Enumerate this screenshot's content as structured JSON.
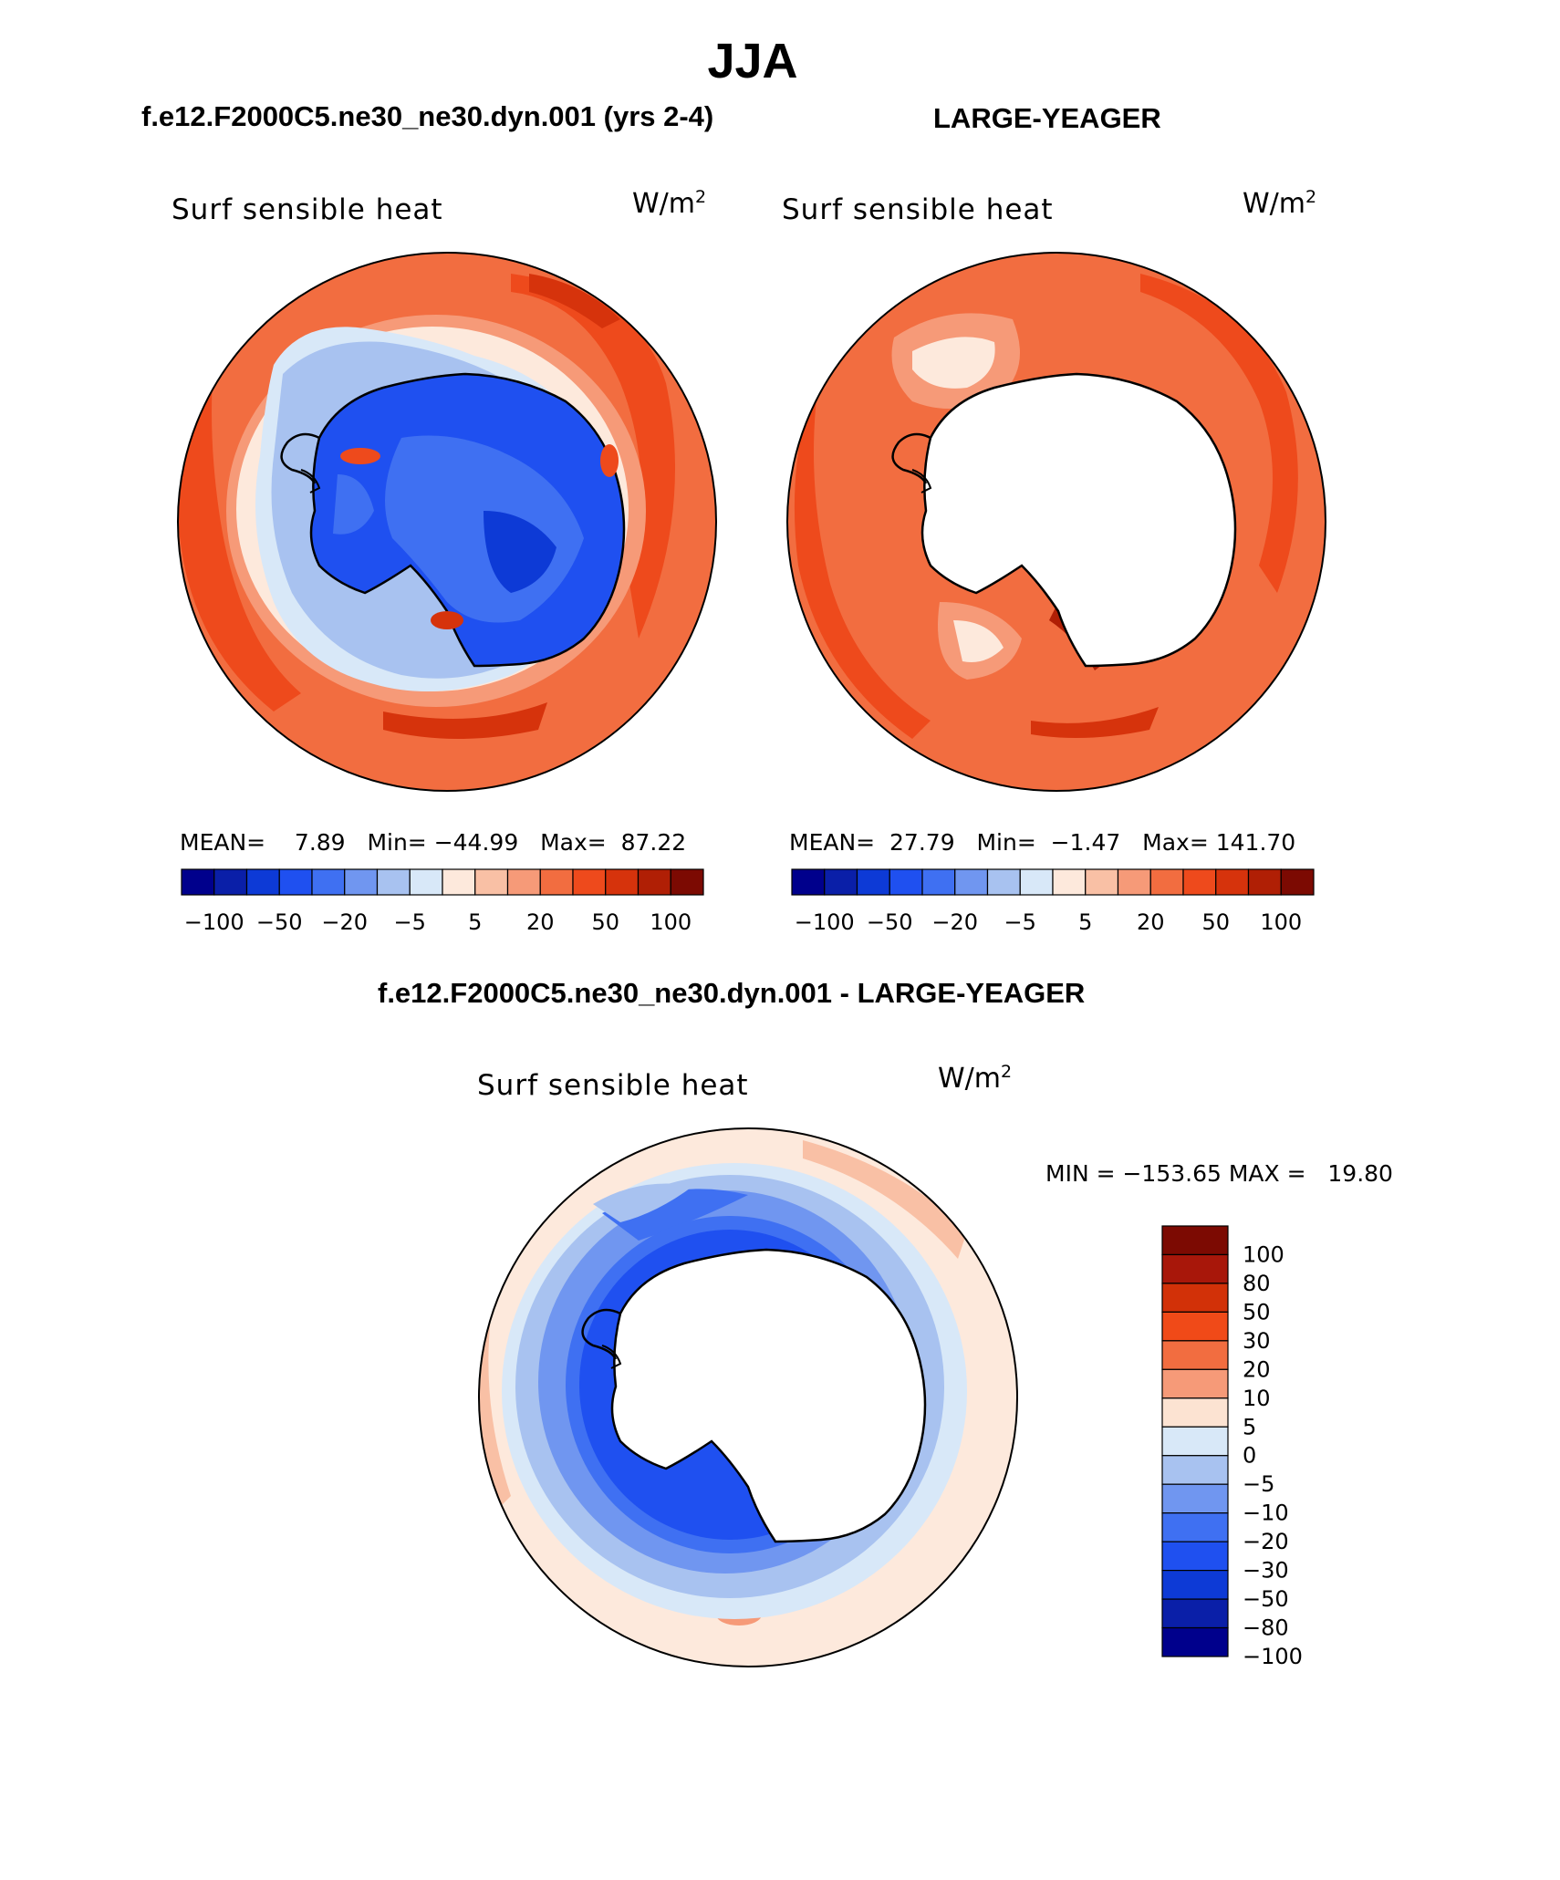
{
  "title": "JJA",
  "panels": [
    {
      "id": "model",
      "subtitle": "f.e12.F2000C5.ne30_ne30.dyn.001 (yrs 2-4)",
      "variable": "Surf sensible heat",
      "units_base": "W/m",
      "units_exp": "2",
      "stats": {
        "mean_label": "MEAN=",
        "mean": "7.89",
        "min_label": "Min=",
        "min": "−44.99",
        "max_label": "Max=",
        "max": "87.22"
      }
    },
    {
      "id": "obs",
      "subtitle": "LARGE-YEAGER",
      "variable": "Surf sensible heat",
      "units_base": "W/m",
      "units_exp": "2",
      "stats": {
        "mean_label": "MEAN=",
        "mean": "27.79",
        "min_label": "Min=",
        "min": "−1.47",
        "max_label": "Max=",
        "max": "141.70"
      }
    }
  ],
  "difference": {
    "subtitle": "f.e12.F2000C5.ne30_ne30.dyn.001 - LARGE-YEAGER",
    "variable": "Surf sensible heat",
    "units_base": "W/m",
    "units_exp": "2",
    "minmax": "MIN = −153.65 MAX =   19.80"
  },
  "colorbar_horizontal": {
    "colors": [
      "#00008c",
      "#0a1fa8",
      "#0d3ad6",
      "#1f50f0",
      "#3f70f2",
      "#7096f0",
      "#a8c2f0",
      "#d8e8f8",
      "#fde9dc",
      "#f9c0a5",
      "#f69a78",
      "#f26d40",
      "#ee4a1c",
      "#d6330c",
      "#b01f05",
      "#7c0a02"
    ],
    "labels": [
      "−100",
      "−50",
      "−20",
      "−5",
      "5",
      "20",
      "50",
      "100"
    ]
  },
  "colorbar_vertical": {
    "colors": [
      "#7c0a02",
      "#a8170a",
      "#d23108",
      "#f04a18",
      "#f26d40",
      "#f69a78",
      "#fce3d2",
      "#d8e8f8",
      "#a8c2f0",
      "#7096f0",
      "#3f70f2",
      "#1f50f0",
      "#0d3ad6",
      "#0a1fa8",
      "#00008c"
    ],
    "labels": [
      "100",
      "80",
      "50",
      "30",
      "20",
      "10",
      "5",
      "0",
      "−5",
      "−10",
      "−20",
      "−30",
      "−50",
      "−80",
      "−100"
    ]
  },
  "fields": {
    "model": {
      "ocean_far": "#f26d40",
      "ocean_mid": "#ee4a1c",
      "ocean_near": "#f69a78",
      "ice": "#a8c2f0",
      "ice_edge": "#d8e8f8",
      "land": "#1f50f0",
      "land_dark": "#0d3ad6",
      "land_light": "#3f70f2"
    },
    "obs": {
      "ocean_far": "#f26d40",
      "ocean_mid": "#ee4a1c",
      "ocean_near": "#f69a78",
      "ice": "#fde9dc",
      "land": "#ffffff"
    },
    "diff": {
      "ocean_far": "#fde9dc",
      "ocean_mid": "#f9c0a5",
      "ring_outer": "#d8e8f8",
      "ring_mid": "#a8c2f0",
      "ring_inner": "#7096f0",
      "coast": "#1f50f0",
      "land": "#ffffff"
    }
  }
}
